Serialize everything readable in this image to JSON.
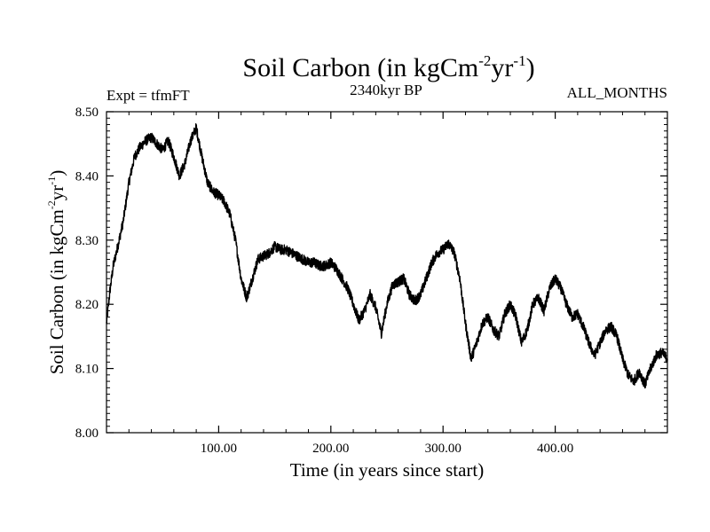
{
  "chart_data": {
    "type": "line",
    "title_main": "Soil Carbon (in kgCm",
    "title_sup1": "-2",
    "title_mid": "yr",
    "title_sup2": "-1",
    "title_end": ")",
    "subtitle": "2340kyr BP",
    "left_label": "Expt = tfmFT",
    "right_label": "ALL_MONTHS",
    "xlabel": "Time (in years since start)",
    "ylabel_main": "Soil Carbon (in kgCm",
    "ylabel_sup1": "-2",
    "ylabel_mid": "yr",
    "ylabel_sup2": "-1",
    "ylabel_end": ")",
    "xlim": [
      0,
      500
    ],
    "ylim": [
      8.0,
      8.5
    ],
    "xticks": [
      100,
      200,
      300,
      400
    ],
    "xtick_labels": [
      "100.00",
      "200.00",
      "300.00",
      "400.00"
    ],
    "yticks": [
      8.0,
      8.1,
      8.2,
      8.3,
      8.4,
      8.5
    ],
    "ytick_labels": [
      "8.00",
      "8.10",
      "8.20",
      "8.30",
      "8.40",
      "8.50"
    ],
    "noise_amplitude": 0.008,
    "series": [
      {
        "name": "Soil Carbon",
        "x": [
          0,
          3,
          6,
          10,
          15,
          20,
          25,
          30,
          35,
          40,
          45,
          50,
          55,
          60,
          65,
          70,
          75,
          80,
          85,
          90,
          95,
          100,
          105,
          110,
          115,
          120,
          125,
          130,
          135,
          140,
          145,
          150,
          155,
          160,
          165,
          170,
          175,
          180,
          185,
          190,
          195,
          200,
          205,
          210,
          215,
          220,
          225,
          230,
          235,
          240,
          245,
          250,
          255,
          260,
          265,
          270,
          275,
          280,
          285,
          290,
          295,
          300,
          305,
          310,
          315,
          320,
          325,
          330,
          335,
          340,
          345,
          350,
          355,
          360,
          365,
          370,
          375,
          380,
          385,
          390,
          395,
          400,
          405,
          410,
          415,
          420,
          425,
          430,
          435,
          440,
          445,
          450,
          455,
          460,
          465,
          470,
          475,
          480,
          485,
          490,
          495,
          500
        ],
        "values": [
          8.17,
          8.22,
          8.26,
          8.29,
          8.33,
          8.39,
          8.43,
          8.445,
          8.455,
          8.46,
          8.45,
          8.44,
          8.455,
          8.43,
          8.4,
          8.42,
          8.455,
          8.475,
          8.43,
          8.39,
          8.375,
          8.37,
          8.36,
          8.34,
          8.3,
          8.24,
          8.21,
          8.24,
          8.27,
          8.275,
          8.28,
          8.29,
          8.285,
          8.285,
          8.28,
          8.275,
          8.27,
          8.265,
          8.265,
          8.26,
          8.26,
          8.265,
          8.255,
          8.24,
          8.225,
          8.2,
          8.175,
          8.19,
          8.215,
          8.195,
          8.155,
          8.2,
          8.23,
          8.235,
          8.24,
          8.215,
          8.205,
          8.215,
          8.24,
          8.265,
          8.28,
          8.285,
          8.295,
          8.28,
          8.24,
          8.17,
          8.115,
          8.14,
          8.17,
          8.18,
          8.16,
          8.15,
          8.185,
          8.2,
          8.18,
          8.14,
          8.16,
          8.2,
          8.21,
          8.19,
          8.225,
          8.24,
          8.225,
          8.2,
          8.18,
          8.185,
          8.165,
          8.14,
          8.12,
          8.14,
          8.16,
          8.165,
          8.15,
          8.115,
          8.09,
          8.08,
          8.095,
          8.075,
          8.1,
          8.12,
          8.125,
          8.115
        ]
      }
    ]
  }
}
